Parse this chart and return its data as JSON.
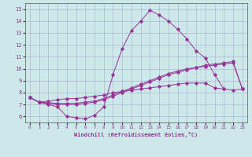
{
  "xlabel": "Windchill (Refroidissement éolien,°C)",
  "background_color": "#cce8e8",
  "line_color": "#993399",
  "xlim": [
    -0.5,
    23.5
  ],
  "ylim": [
    5.5,
    15.5
  ],
  "xticks": [
    0,
    1,
    2,
    3,
    4,
    5,
    6,
    7,
    8,
    9,
    10,
    11,
    12,
    13,
    14,
    15,
    16,
    17,
    18,
    19,
    20,
    21,
    22,
    23
  ],
  "yticks": [
    6,
    7,
    8,
    9,
    10,
    11,
    12,
    13,
    14,
    15
  ],
  "series": [
    {
      "x": [
        0,
        1,
        2,
        3,
        4,
        5,
        6,
        7,
        8,
        9,
        10,
        11,
        12,
        13,
        14,
        15,
        16,
        17,
        18,
        19,
        20,
        21
      ],
      "y": [
        7.6,
        7.2,
        7.0,
        6.8,
        6.0,
        5.9,
        5.8,
        6.1,
        6.8,
        9.5,
        11.7,
        13.2,
        14.0,
        14.9,
        14.5,
        14.0,
        13.3,
        12.5,
        11.5,
        10.9,
        9.5,
        8.3
      ]
    },
    {
      "x": [
        0,
        1,
        2,
        3,
        4,
        5,
        6,
        7,
        8,
        9,
        10,
        11,
        12,
        13,
        14,
        15,
        16,
        17,
        18,
        19,
        20,
        21,
        22,
        23
      ],
      "y": [
        7.6,
        7.2,
        7.1,
        7.0,
        7.0,
        7.0,
        7.1,
        7.2,
        7.4,
        7.7,
        8.0,
        8.3,
        8.6,
        8.9,
        9.2,
        9.5,
        9.7,
        9.9,
        10.1,
        10.3,
        10.4,
        10.5,
        10.6,
        8.3
      ]
    },
    {
      "x": [
        0,
        1,
        2,
        3,
        4,
        5,
        6,
        7,
        8,
        9,
        10,
        11,
        12,
        13,
        14,
        15,
        16,
        17,
        18,
        19,
        20,
        21,
        22,
        23
      ],
      "y": [
        7.6,
        7.2,
        7.15,
        7.1,
        7.1,
        7.1,
        7.2,
        7.3,
        7.5,
        7.8,
        8.1,
        8.4,
        8.7,
        9.0,
        9.3,
        9.6,
        9.8,
        10.0,
        10.1,
        10.2,
        10.3,
        10.4,
        10.5,
        8.3
      ]
    },
    {
      "x": [
        0,
        1,
        2,
        3,
        4,
        5,
        6,
        7,
        8,
        9,
        10,
        11,
        12,
        13,
        14,
        15,
        16,
        17,
        18,
        19,
        20,
        21,
        22,
        23
      ],
      "y": [
        7.6,
        7.2,
        7.3,
        7.4,
        7.5,
        7.5,
        7.6,
        7.7,
        7.8,
        8.0,
        8.1,
        8.2,
        8.3,
        8.4,
        8.5,
        8.6,
        8.7,
        8.8,
        8.8,
        8.8,
        8.4,
        8.3,
        8.2,
        8.3
      ]
    }
  ]
}
